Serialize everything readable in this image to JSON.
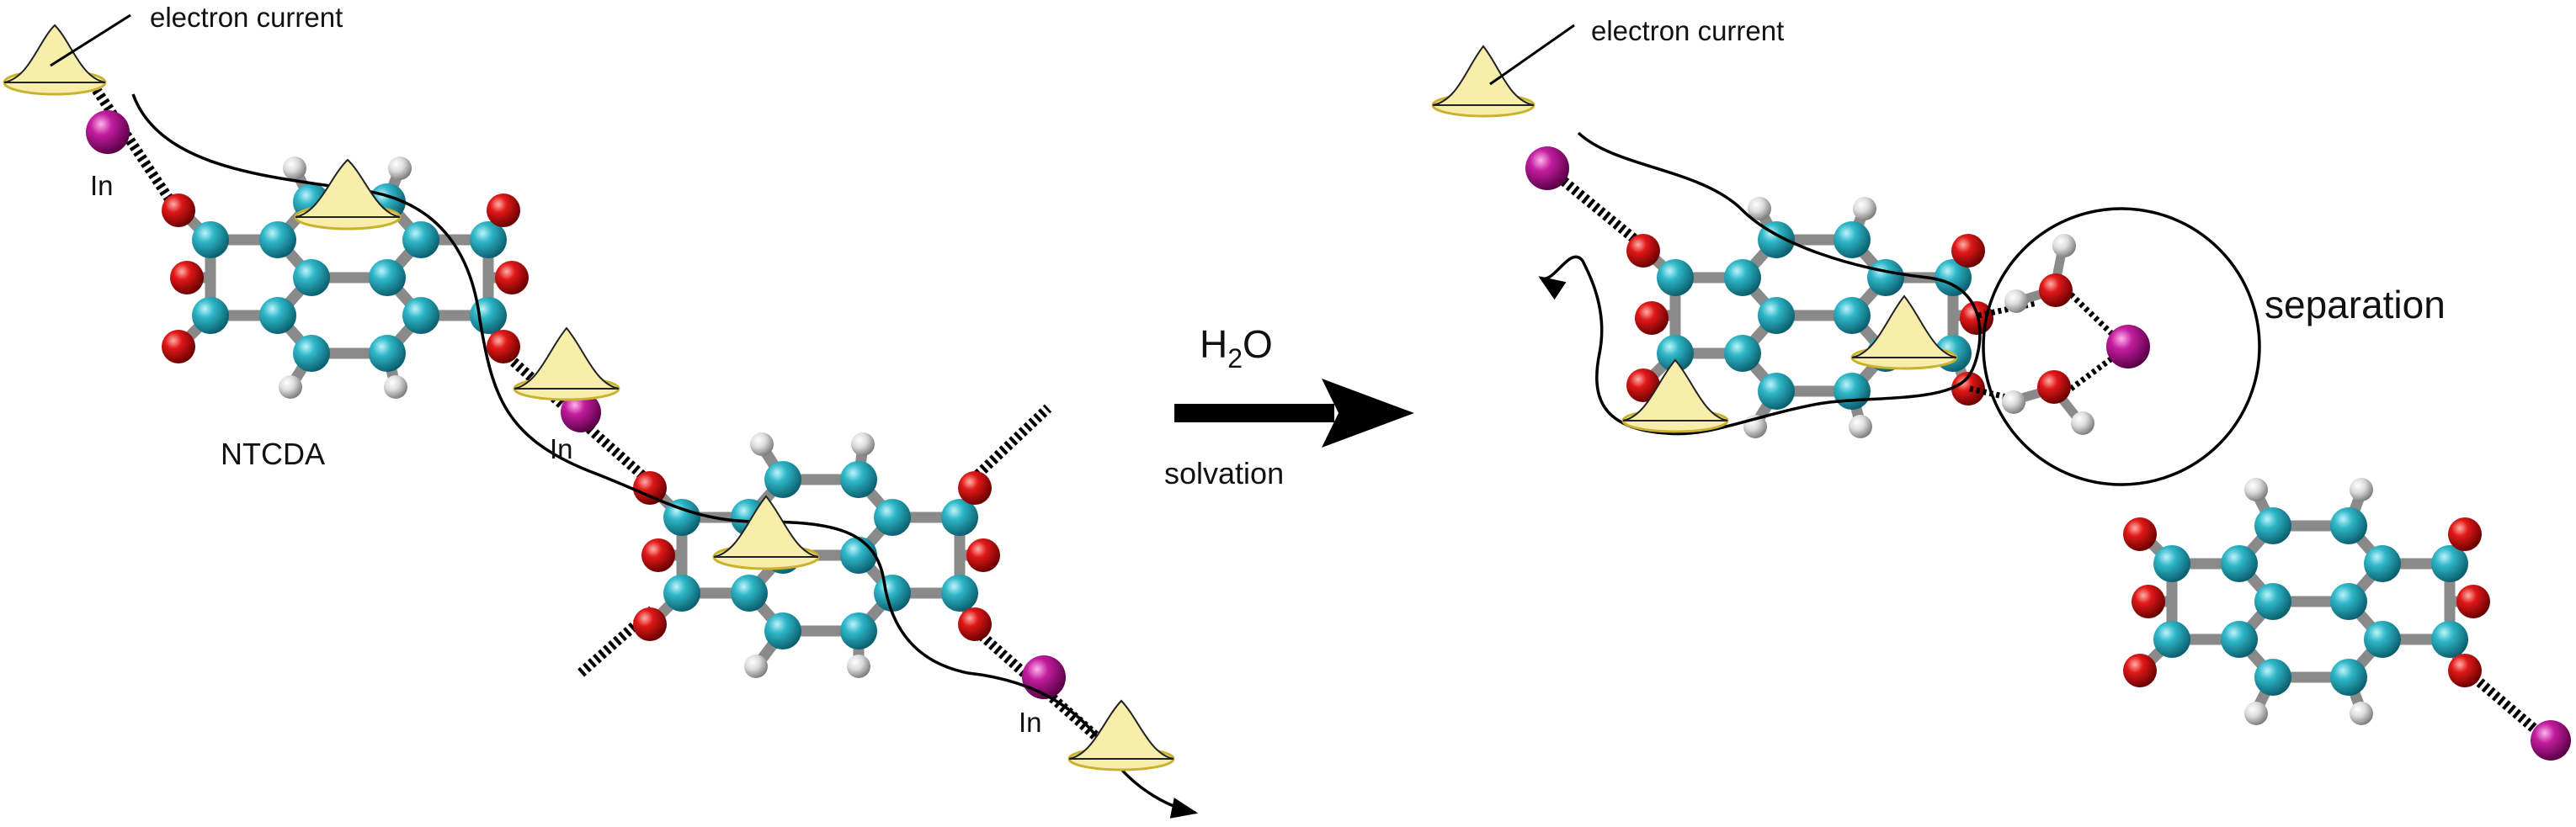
{
  "labels": {
    "electron_current_left": "electron current",
    "electron_current_right": "electron current",
    "in_1": "In",
    "in_2": "In",
    "in_3": "In",
    "ntcda": "NTCDA",
    "h2o": "H",
    "h2o_sub": "2",
    "h2o_tail": "O",
    "solvation": "solvation",
    "separation": "separation"
  },
  "colors": {
    "carbon": "#1b9fb0",
    "oxygen": "#cc1010",
    "hydrogen": "#d8d8d8",
    "indium": "#b0168f",
    "cone": "#f7eeab",
    "cone_rim": "#e8d64a",
    "bond": "#8a8a8a",
    "ink": "#000000"
  }
}
